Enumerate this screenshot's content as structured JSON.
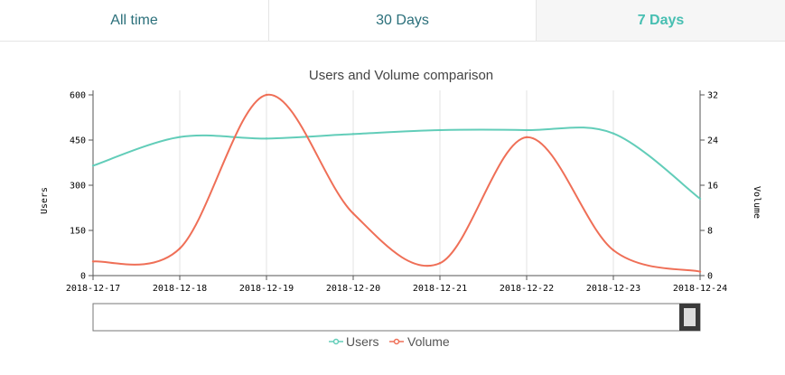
{
  "tabs": [
    {
      "label": "All time",
      "active": false
    },
    {
      "label": "30 Days",
      "active": false
    },
    {
      "label": "7 Days",
      "active": true
    }
  ],
  "colors": {
    "users": "#62cdb9",
    "volume": "#ef6f57",
    "tab_text": "#2a6f7a",
    "tab_active": "#47bfb2"
  },
  "chart_data": {
    "type": "line",
    "title": "Users and Volume comparison",
    "categories": [
      "2018-12-17",
      "2018-12-18",
      "2018-12-19",
      "2018-12-20",
      "2018-12-21",
      "2018-12-22",
      "2018-12-23",
      "2018-12-24"
    ],
    "series": [
      {
        "name": "Users",
        "axis": "left",
        "values": [
          365,
          460,
          455,
          470,
          483,
          483,
          472,
          255
        ]
      },
      {
        "name": "Volume",
        "axis": "right",
        "values": [
          2.5,
          4.8,
          32,
          11,
          2.2,
          24.5,
          4.5,
          0.7
        ]
      }
    ],
    "ylabel_left": "Users",
    "ylabel_right": "Volume",
    "ylim_left": [
      0,
      600
    ],
    "ylim_right": [
      0,
      32
    ],
    "yticks_left": [
      "0",
      "150",
      "300",
      "450",
      "600"
    ],
    "yticks_right": [
      "0",
      "8",
      "16",
      "24",
      "32"
    ],
    "legend": [
      "Users",
      "Volume"
    ],
    "legend_position": "bottom",
    "grid": "vertical"
  }
}
